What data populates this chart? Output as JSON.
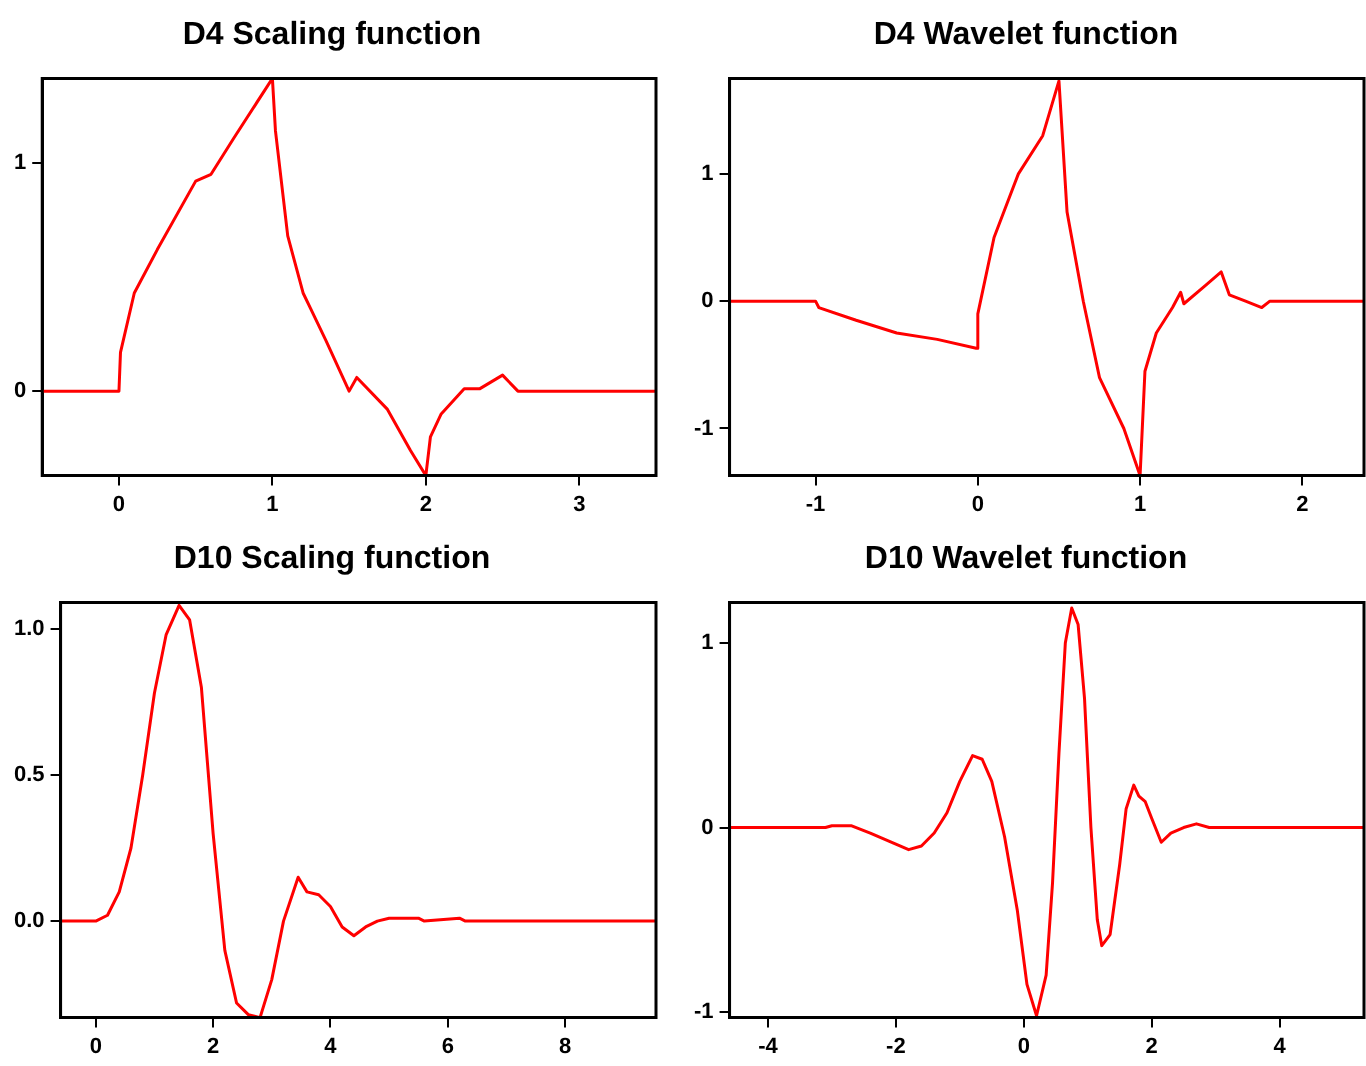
{
  "chart_data": [
    {
      "type": "line",
      "title": "D4 Scaling function",
      "xlim": [
        -0.5,
        3.5
      ],
      "xticks": [
        0,
        1,
        2,
        3
      ],
      "ylim": [
        -0.37,
        1.37
      ],
      "yticks": [
        0,
        1
      ],
      "grid": false,
      "legend": false,
      "marker": "none",
      "series": [
        {
          "color": "#ff0000",
          "x": [
            -0.5,
            0,
            0.01,
            0.1,
            0.25,
            0.5,
            0.6,
            0.75,
            1.0,
            1.02,
            1.1,
            1.2,
            1.25,
            1.35,
            1.5,
            1.55,
            1.75,
            1.9,
            2.0,
            2.03,
            2.1,
            2.25,
            2.35,
            2.5,
            2.6,
            3.0,
            3.5
          ],
          "values": [
            0,
            0,
            0.17,
            0.43,
            0.62,
            0.92,
            0.95,
            1.11,
            1.37,
            1.14,
            0.68,
            0.43,
            0.36,
            0.22,
            0.0,
            0.06,
            -0.08,
            -0.26,
            -0.37,
            -0.2,
            -0.1,
            0.01,
            0.01,
            0.07,
            0.0,
            0,
            0
          ]
        }
      ]
    },
    {
      "type": "line",
      "title": "D4 Wavelet function",
      "xlim": [
        -1.53,
        2.38
      ],
      "xticks": [
        -1,
        0,
        1,
        2
      ],
      "ylim": [
        -1.37,
        1.75
      ],
      "yticks": [
        -1,
        0,
        1
      ],
      "grid": false,
      "legend": false,
      "marker": "none",
      "series": [
        {
          "color": "#ff0000",
          "x": [
            -1.53,
            -1,
            -0.98,
            -0.75,
            -0.5,
            -0.25,
            -0.01,
            0,
            0.1,
            0.25,
            0.4,
            0.5,
            0.55,
            0.65,
            0.75,
            0.9,
            1.0,
            1.03,
            1.1,
            1.2,
            1.25,
            1.27,
            1.4,
            1.5,
            1.55,
            1.65,
            1.75,
            1.8,
            2.38
          ],
          "values": [
            0,
            0,
            -0.05,
            -0.15,
            -0.25,
            -0.3,
            -0.37,
            -0.1,
            0.5,
            1.0,
            1.3,
            1.73,
            0.7,
            0.0,
            -0.6,
            -1.0,
            -1.37,
            -0.55,
            -0.25,
            -0.05,
            0.07,
            -0.02,
            0.12,
            0.23,
            0.05,
            0.0,
            -0.05,
            0,
            0
          ]
        }
      ]
    },
    {
      "type": "line",
      "title": "D10 Scaling function",
      "xlim": [
        -0.6,
        9.55
      ],
      "xticks": [
        0,
        2,
        4,
        6,
        8
      ],
      "ylim": [
        -0.33,
        1.09
      ],
      "yticks": [
        {
          "value": 0,
          "label": "0.0"
        },
        {
          "value": 0.5,
          "label": "0.5"
        },
        {
          "value": 1,
          "label": "1.0"
        }
      ],
      "grid": false,
      "legend": false,
      "marker": "none",
      "series": [
        {
          "color": "#ff0000",
          "x": [
            -0.6,
            0,
            0.2,
            0.4,
            0.6,
            0.8,
            1.0,
            1.2,
            1.42,
            1.6,
            1.8,
            2.0,
            2.2,
            2.4,
            2.6,
            2.8,
            3.0,
            3.2,
            3.45,
            3.6,
            3.8,
            4.0,
            4.2,
            4.4,
            4.6,
            4.8,
            5.0,
            5.5,
            5.6,
            6.2,
            6.3,
            9.55
          ],
          "values": [
            0,
            0,
            0.02,
            0.1,
            0.25,
            0.5,
            0.78,
            0.98,
            1.08,
            1.03,
            0.8,
            0.3,
            -0.1,
            -0.28,
            -0.32,
            -0.33,
            -0.2,
            0.0,
            0.15,
            0.1,
            0.09,
            0.05,
            -0.02,
            -0.05,
            -0.02,
            0.0,
            0.01,
            0.01,
            0,
            0.01,
            0,
            0
          ]
        }
      ]
    },
    {
      "type": "line",
      "title": "D10 Wavelet function",
      "xlim": [
        -4.6,
        5.32
      ],
      "xticks": [
        -4,
        -2,
        0,
        2,
        4
      ],
      "ylim": [
        -1.03,
        1.22
      ],
      "yticks": [
        -1,
        0,
        1
      ],
      "grid": false,
      "legend": false,
      "marker": "none",
      "series": [
        {
          "color": "#ff0000",
          "x": [
            -4.6,
            -3.1,
            -3.0,
            -2.7,
            -2.4,
            -2.0,
            -1.8,
            -1.6,
            -1.4,
            -1.2,
            -1.0,
            -0.8,
            -0.65,
            -0.5,
            -0.3,
            -0.1,
            0.05,
            0.2,
            0.35,
            0.45,
            0.55,
            0.65,
            0.75,
            0.85,
            0.95,
            1.05,
            1.15,
            1.22,
            1.35,
            1.5,
            1.6,
            1.72,
            1.8,
            1.9,
            2.0,
            2.15,
            2.3,
            2.5,
            2.7,
            2.9,
            5.32
          ],
          "values": [
            0,
            0,
            0.01,
            0.01,
            -0.03,
            -0.09,
            -0.12,
            -0.1,
            -0.03,
            0.08,
            0.25,
            0.39,
            0.37,
            0.25,
            -0.05,
            -0.45,
            -0.85,
            -1.02,
            -0.8,
            -0.3,
            0.4,
            1.0,
            1.19,
            1.1,
            0.7,
            0.0,
            -0.5,
            -0.64,
            -0.58,
            -0.2,
            0.1,
            0.23,
            0.17,
            0.14,
            0.05,
            -0.08,
            -0.03,
            0.0,
            0.02,
            0,
            0
          ]
        }
      ]
    }
  ]
}
